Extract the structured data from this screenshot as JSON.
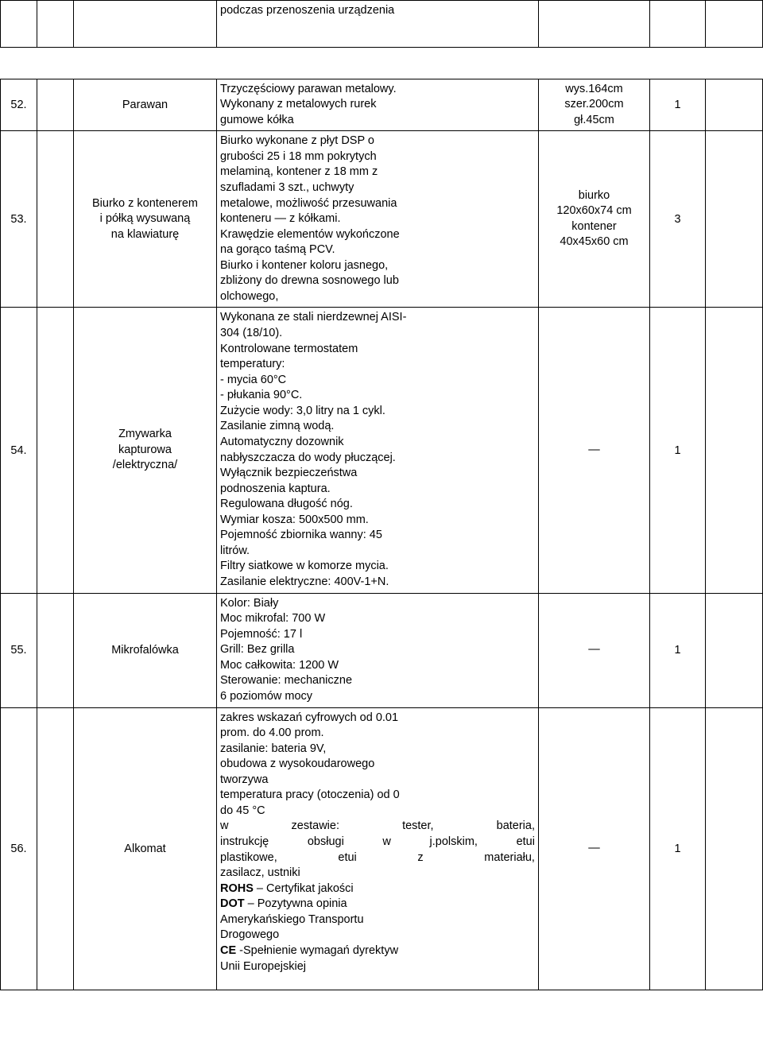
{
  "header_row": {
    "desc": "podczas przenoszenia urządzenia"
  },
  "rows": [
    {
      "num": "52.",
      "name": "Parawan",
      "desc_lines": [
        "Trzyczęściowy parawan metalowy.",
        "Wykonany z metalowych rurek",
        "gumowe kółka"
      ],
      "dim_lines": [
        "wys.164cm",
        "szer.200cm",
        "gł.45cm"
      ],
      "qty": "1"
    },
    {
      "num": "53.",
      "name_lines": [
        "Biurko z kontenerem",
        "i półką wysuwaną",
        "na klawiaturę"
      ],
      "desc_lines": [
        "Biurko wykonane z płyt DSP o",
        "grubości 25 i 18 mm pokrytych",
        "melaminą, kontener z 18 mm z",
        "szufladami 3 szt., uchwyty",
        "metalowe, możliwość przesuwania",
        "konteneru — z kółkami.",
        "Krawędzie elementów wykończone",
        "na gorąco taśmą PCV.",
        "Biurko i kontener koloru jasnego,",
        "zbliżony do drewna sosnowego lub",
        "olchowego,"
      ],
      "dim_lines": [
        "biurko",
        "120x60x74 cm",
        "kontener",
        "40x45x60 cm"
      ],
      "qty": "3"
    },
    {
      "num": "54.",
      "name_lines": [
        "Zmywarka",
        "kapturowa",
        "/elektryczna/"
      ],
      "desc_lines": [
        "Wykonana ze stali nierdzewnej AISI-",
        "304 (18/10).",
        "Kontrolowane termostatem",
        "temperatury:",
        "- mycia 60°C",
        "- płukania 90°C.",
        "Zużycie wody: 3,0 litry na 1 cykl.",
        "Zasilanie zimną wodą.",
        "Automatyczny dozownik",
        "nabłyszczacza do wody płuczącej.",
        "Wyłącznik bezpieczeństwa",
        "podnoszenia kaptura.",
        "Regulowana długość nóg.",
        "Wymiar kosza: 500x500 mm.",
        "Pojemność zbiornika wanny: 45",
        "litrów.",
        "Filtry siatkowe w komorze mycia.",
        "Zasilanie elektryczne: 400V-1+N."
      ],
      "dim_lines": [
        "—"
      ],
      "qty": "1"
    },
    {
      "num": "55.",
      "name": "Mikrofalówka",
      "desc_lines": [
        "Kolor: Biały",
        "Moc mikrofal: 700 W",
        "Pojemność: 17 l",
        "Grill: Bez grilla",
        "Moc całkowita: 1200 W",
        "Sterowanie: mechaniczne",
        "6 poziomów mocy"
      ],
      "dim_lines": [
        "—"
      ],
      "qty": "1"
    },
    {
      "num": "56.",
      "name": "Alkomat",
      "desc_lines": [
        "zakres wskazań cyfrowych od 0.01",
        "prom. do 4.00 prom.",
        "zasilanie: bateria 9V,",
        "obudowa z wysokoudarowego",
        "tworzywa",
        "temperatura pracy (otoczenia) od 0",
        "do 45 °C"
      ],
      "justify_lines": [
        [
          "w",
          "zestawie:",
          "tester,",
          "bateria,"
        ],
        [
          "instrukcję",
          "obsługi",
          "w",
          "j.polskim,",
          "etui"
        ],
        [
          "plastikowe,",
          "etui",
          "z",
          "materiału,"
        ]
      ],
      "desc_lines_after": [
        "zasilacz, ustniki"
      ],
      "bold_lines": [
        {
          "bold": "ROHS",
          "rest": " – Certyfikat jakości"
        },
        {
          "bold": "DOT",
          "rest": " – Pozytywna opinia"
        }
      ],
      "desc_lines_after2": [
        "Amerykańskiego Transportu",
        "Drogowego"
      ],
      "bold_lines2": [
        {
          "bold": "CE",
          "rest": " -Spełnienie wymagań dyrektyw"
        }
      ],
      "desc_lines_after3": [
        "Unii Europejskiej"
      ],
      "dim_lines": [
        "—"
      ],
      "qty": "1"
    }
  ]
}
